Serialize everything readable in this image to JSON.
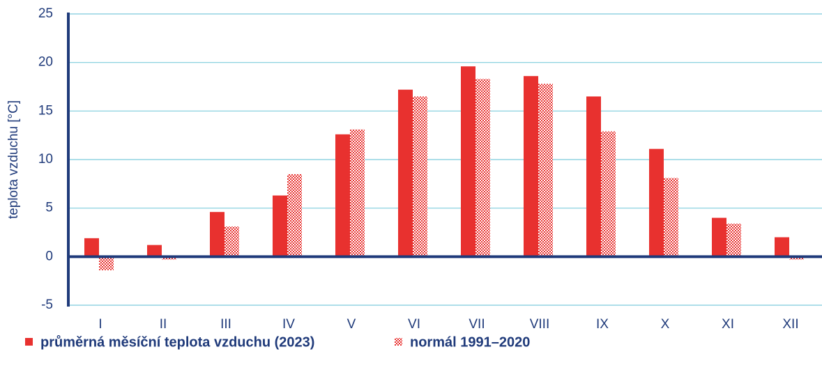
{
  "chart_data": {
    "type": "bar",
    "y_label": "teplota vzduchu [°C]",
    "categories": [
      "I",
      "II",
      "III",
      "IV",
      "V",
      "VI",
      "VII",
      "VIII",
      "IX",
      "X",
      "XI",
      "XII"
    ],
    "series": [
      {
        "name": "průměrná měsíční teplota vzduchu (2023)",
        "color": "#e8312f",
        "pattern": "solid",
        "values": [
          1.9,
          1.2,
          4.6,
          6.3,
          12.6,
          17.2,
          19.6,
          18.6,
          16.5,
          11.1,
          4.0,
          2.0
        ]
      },
      {
        "name": "normál 1991–2020",
        "color": "#e8312f",
        "pattern": "checker",
        "values": [
          -1.4,
          -0.3,
          3.1,
          8.5,
          13.1,
          16.5,
          18.3,
          17.8,
          12.9,
          8.1,
          3.4,
          -0.3
        ]
      }
    ],
    "ylim": [
      -5,
      25
    ],
    "yticks": [
      -5,
      0,
      5,
      10,
      15,
      20,
      25
    ],
    "grid": true
  }
}
